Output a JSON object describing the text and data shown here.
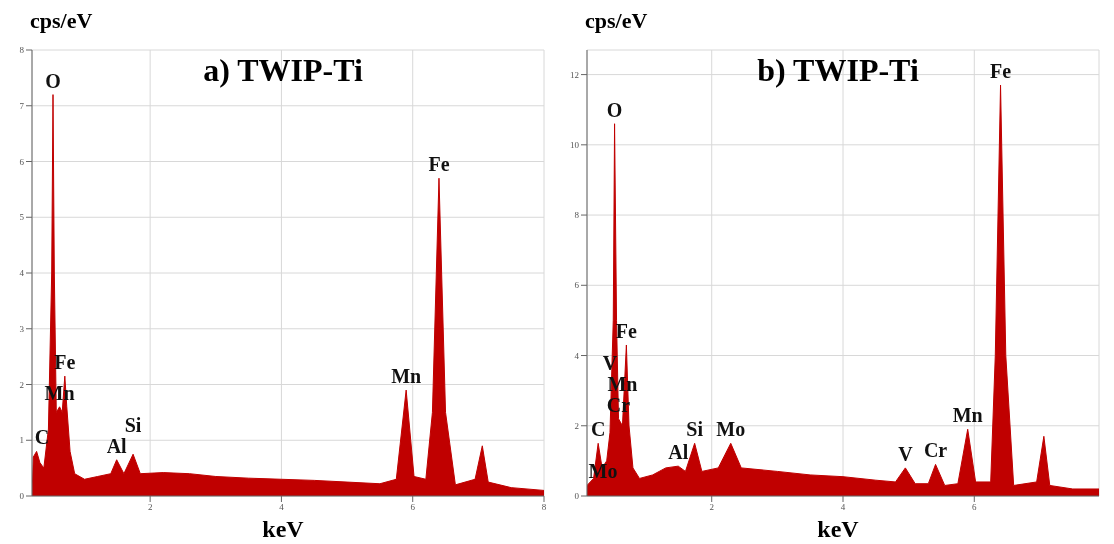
{
  "chart_data": [
    {
      "type": "area",
      "title": "a) TWIP-Ti",
      "xlabel": "keV",
      "ylabel": "cps/eV",
      "xlim": [
        0.2,
        8
      ],
      "xticks": [
        2,
        4,
        6,
        8
      ],
      "ylim": [
        0,
        8
      ],
      "yticks": [
        0,
        1,
        2,
        3,
        4,
        5,
        6,
        7,
        8
      ],
      "grid": true,
      "legend": false,
      "series": [
        {
          "color": "#c00000",
          "x": [
            0.2,
            0.22,
            0.27,
            0.32,
            0.38,
            0.45,
            0.5,
            0.52,
            0.54,
            0.57,
            0.62,
            0.66,
            0.7,
            0.73,
            0.78,
            0.85,
            1.0,
            1.2,
            1.4,
            1.49,
            1.6,
            1.74,
            1.85,
            2.2,
            2.6,
            3.0,
            3.5,
            4.0,
            4.5,
            5.0,
            5.5,
            5.75,
            5.9,
            6.02,
            6.2,
            6.3,
            6.4,
            6.5,
            6.65,
            6.95,
            7.06,
            7.15,
            7.5,
            8
          ],
          "values": [
            0,
            0.7,
            0.8,
            0.6,
            0.5,
            1.2,
            4,
            7.2,
            4,
            1.5,
            1.6,
            1.5,
            2.15,
            1.6,
            0.8,
            0.4,
            0.3,
            0.35,
            0.4,
            0.65,
            0.4,
            0.75,
            0.4,
            0.42,
            0.4,
            0.35,
            0.32,
            0.3,
            0.28,
            0.25,
            0.22,
            0.3,
            1.9,
            0.35,
            0.3,
            1.5,
            5.7,
            1.5,
            0.2,
            0.3,
            0.9,
            0.25,
            0.15,
            0.1
          ]
        }
      ],
      "annotations": [
        {
          "text": "O",
          "x": 0.52,
          "y": 7.2
        },
        {
          "text": "Fe",
          "x": 0.7,
          "y": 2.15
        },
        {
          "text": "Mn",
          "x": 0.62,
          "y": 1.6
        },
        {
          "text": "C",
          "x": 0.27,
          "y": 0.8
        },
        {
          "text": "Al",
          "x": 1.49,
          "y": 0.65
        },
        {
          "text": "Si",
          "x": 1.74,
          "y": 0.75
        },
        {
          "text": "Mn",
          "x": 5.9,
          "y": 1.9
        },
        {
          "text": "Fe",
          "x": 6.4,
          "y": 5.7
        }
      ]
    },
    {
      "type": "area",
      "title": "b) TWIP-Ti",
      "xlabel": "keV",
      "ylabel": "cps/eV",
      "xlim": [
        0.1,
        7.9
      ],
      "xticks": [
        2,
        4,
        6
      ],
      "ylim": [
        0,
        12.7
      ],
      "yticks": [
        0,
        2,
        4,
        6,
        8,
        10,
        12
      ],
      "grid": true,
      "legend": false,
      "series": [
        {
          "color": "#c00000",
          "x": [
            0.1,
            0.2,
            0.27,
            0.33,
            0.4,
            0.45,
            0.5,
            0.52,
            0.55,
            0.58,
            0.64,
            0.7,
            0.74,
            0.8,
            0.9,
            1.1,
            1.3,
            1.49,
            1.6,
            1.74,
            1.85,
            2.1,
            2.29,
            2.45,
            3.0,
            3.5,
            4.0,
            4.5,
            4.8,
            4.95,
            5.1,
            5.3,
            5.41,
            5.55,
            5.75,
            5.9,
            6.02,
            6.25,
            6.32,
            6.4,
            6.48,
            6.6,
            6.95,
            7.06,
            7.15,
            7.5,
            7.9
          ],
          "values": [
            0.3,
            0.5,
            1.5,
            0.8,
            1.0,
            1.8,
            5,
            10.6,
            5,
            2.2,
            2.0,
            4.3,
            2,
            0.8,
            0.5,
            0.6,
            0.8,
            0.85,
            0.7,
            1.5,
            0.7,
            0.8,
            1.5,
            0.8,
            0.7,
            0.6,
            0.55,
            0.45,
            0.4,
            0.8,
            0.35,
            0.35,
            0.9,
            0.3,
            0.35,
            1.9,
            0.4,
            0.4,
            4,
            11.7,
            4,
            0.3,
            0.4,
            1.7,
            0.3,
            0.2,
            0.2
          ]
        }
      ],
      "annotations": [
        {
          "text": "O",
          "x": 0.52,
          "y": 10.6
        },
        {
          "text": "Cr",
          "x": 0.58,
          "y": 2.2
        },
        {
          "text": "Fe",
          "x": 0.7,
          "y": 4.3
        },
        {
          "text": "Mn",
          "x": 0.64,
          "y": 2.0
        },
        {
          "text": "V",
          "x": 0.45,
          "y": 1.8
        },
        {
          "text": "C",
          "x": 0.27,
          "y": 1.5
        },
        {
          "text": "Mo",
          "x": 0.1,
          "y": 0.3
        },
        {
          "text": "Al",
          "x": 1.49,
          "y": 0.85
        },
        {
          "text": "Si",
          "x": 1.74,
          "y": 1.5
        },
        {
          "text": "Mo",
          "x": 2.29,
          "y": 1.5
        },
        {
          "text": "V",
          "x": 4.95,
          "y": 0.8
        },
        {
          "text": "Cr",
          "x": 5.41,
          "y": 0.9
        },
        {
          "text": "Mn",
          "x": 5.9,
          "y": 1.9
        },
        {
          "text": "Fe",
          "x": 6.4,
          "y": 11.7
        }
      ]
    }
  ]
}
